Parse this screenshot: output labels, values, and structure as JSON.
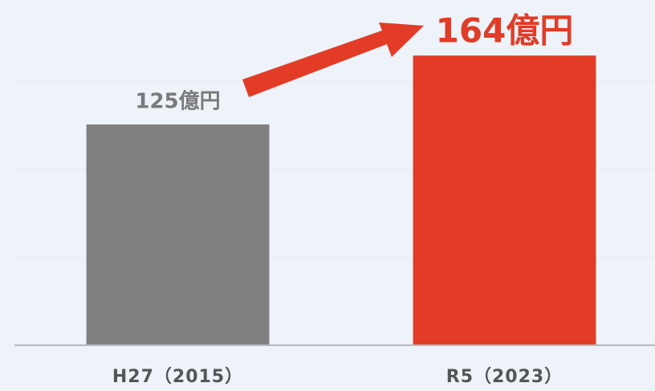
{
  "chart_data": {
    "type": "bar",
    "categories": [
      "H27（2015）",
      "R5（2023）"
    ],
    "values": [
      125,
      164
    ],
    "value_labels": [
      "125億円",
      "164億円"
    ],
    "colors": [
      "#808080",
      "#e23b26"
    ],
    "ylim": [
      0,
      195
    ]
  }
}
